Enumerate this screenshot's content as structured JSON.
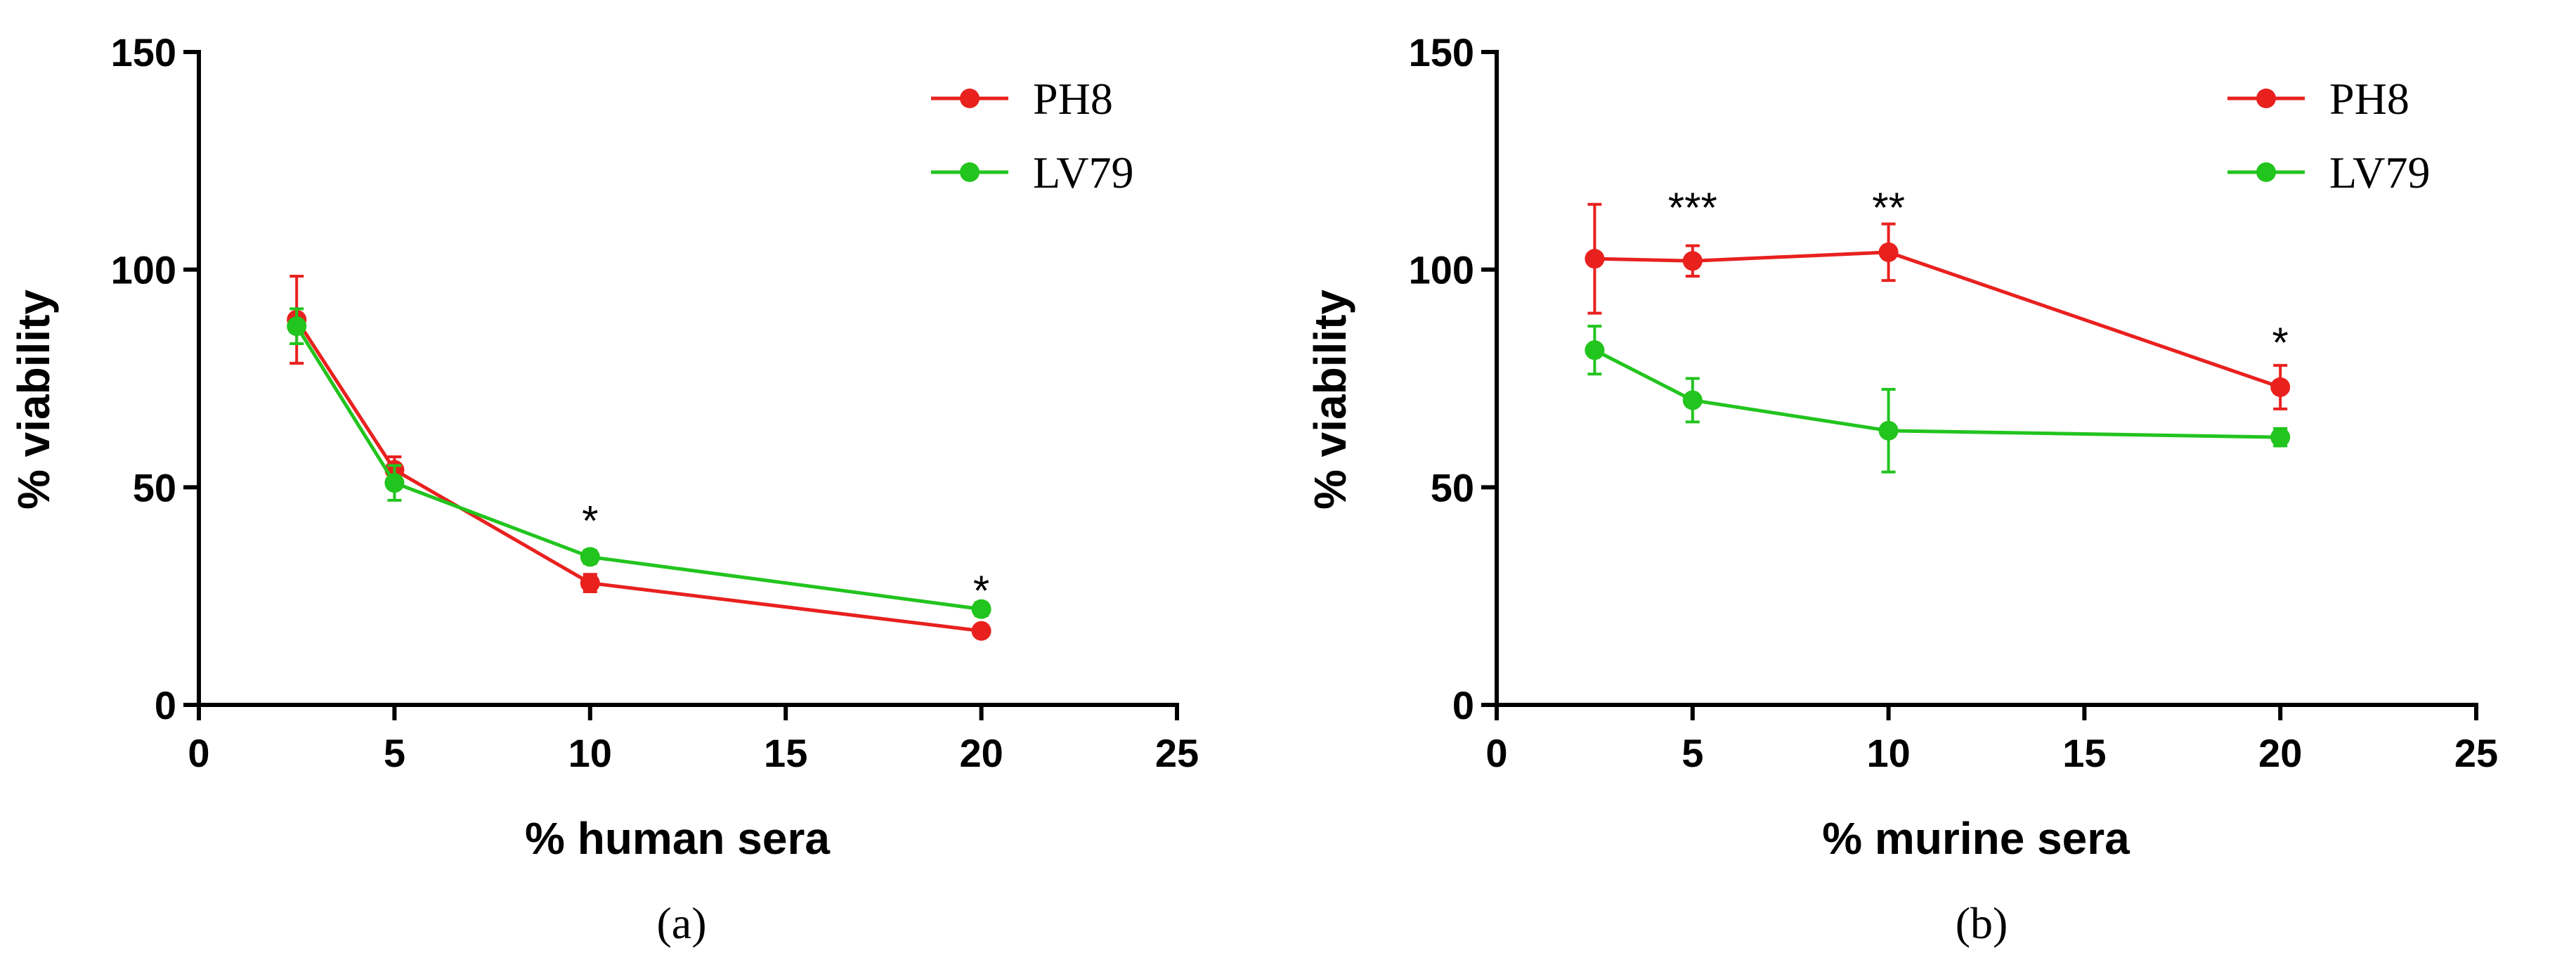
{
  "chart_data": [
    {
      "type": "line",
      "panel_label": "(a)",
      "xlabel": "% human sera",
      "ylabel": "% viability",
      "xlim": [
        0,
        25
      ],
      "ylim": [
        0,
        150
      ],
      "xticks": [
        0,
        5,
        10,
        15,
        20,
        25
      ],
      "yticks": [
        0,
        50,
        100,
        150
      ],
      "legend_position": "top-right",
      "series": [
        {
          "name": "PH8",
          "color": "#e8211f",
          "x": [
            2.5,
            5,
            10,
            20
          ],
          "y": [
            88.5,
            54,
            28,
            17
          ],
          "err": [
            10,
            3,
            2,
            1
          ]
        },
        {
          "name": "LV79",
          "color": "#22c41e",
          "x": [
            2.5,
            5,
            10,
            20
          ],
          "y": [
            87,
            51,
            34,
            22
          ],
          "err": [
            4,
            4,
            1.5,
            1.5
          ]
        }
      ],
      "annotations": [
        {
          "text": "*",
          "x": 10,
          "y": 43
        },
        {
          "text": "*",
          "x": 20,
          "y": 27
        }
      ]
    },
    {
      "type": "line",
      "panel_label": "(b)",
      "xlabel": "% murine sera",
      "ylabel": "% viability",
      "xlim": [
        0,
        25
      ],
      "ylim": [
        0,
        150
      ],
      "xticks": [
        0,
        5,
        10,
        15,
        20,
        25
      ],
      "yticks": [
        0,
        50,
        100,
        150
      ],
      "legend_position": "top-right",
      "series": [
        {
          "name": "PH8",
          "color": "#e8211f",
          "x": [
            2.5,
            5,
            10,
            20
          ],
          "y": [
            102.5,
            102,
            104,
            73
          ],
          "err": [
            12.5,
            3.5,
            6.5,
            5
          ]
        },
        {
          "name": "LV79",
          "color": "#22c41e",
          "x": [
            2.5,
            5,
            10,
            20
          ],
          "y": [
            81.5,
            70,
            63,
            61.5
          ],
          "err": [
            5.5,
            5,
            9.5,
            2
          ]
        }
      ],
      "annotations": [
        {
          "text": "***",
          "x": 5,
          "y": 115
        },
        {
          "text": "**",
          "x": 10,
          "y": 115
        },
        {
          "text": "*",
          "x": 20,
          "y": 84
        }
      ]
    }
  ]
}
